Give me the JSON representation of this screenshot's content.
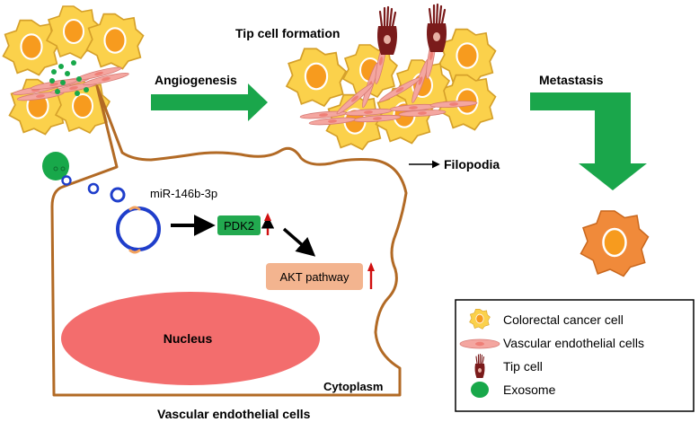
{
  "labels": {
    "tip_cell_formation": "Tip cell formation",
    "angiogenesis": "Angiogenesis",
    "metastasis": "Metastasis",
    "filopodia": "Filopodia",
    "mirna": "miR-146b-3p",
    "pdk2": "PDK2",
    "akt_pathway": "AKT pathway",
    "nucleus": "Nucleus",
    "cytoplasm": "Cytoplasm",
    "cell_caption": "Vascular endothelial cells"
  },
  "legend": {
    "items": [
      {
        "icon": "colorectal-cancer-cell-icon",
        "label": "Colorectal cancer cell"
      },
      {
        "icon": "vascular-endothelial-cell-icon",
        "label": "Vascular endothelial cells"
      },
      {
        "icon": "tip-cell-icon",
        "label": "Tip cell"
      },
      {
        "icon": "exosome-icon",
        "label": "Exosome"
      }
    ]
  },
  "colors": {
    "cancer_cell_fill": "#fbd14b",
    "cancer_cell_stroke": "#d5a02a",
    "cancer_nucleus": "#f79b1e",
    "endothelial": "#f4a6a0",
    "exosome": "#18a84a",
    "arrow_green": "#1aa64b",
    "vesicle_blue": "#1f3ecb",
    "membrane_brown": "#b26a25",
    "nucleus_fill": "#f36d6d",
    "pdk2_fill": "#22a94f",
    "akt_fill": "#f3b48f",
    "up_arrow_red": "#d01010",
    "tip_cell": "#7a1b1b",
    "metastatic_cell": "#f08a3a"
  }
}
